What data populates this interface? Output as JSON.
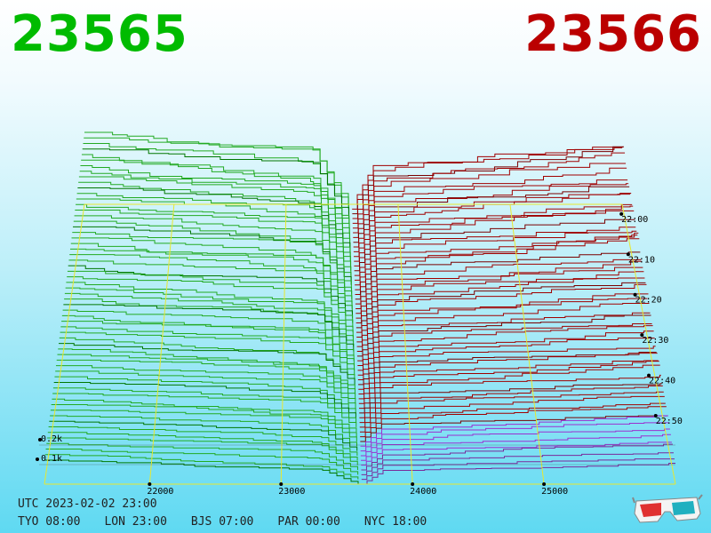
{
  "bid": "23565",
  "ask": "23566",
  "colors": {
    "bid": "#00bb00",
    "ask": "#bb0000",
    "bid_lines": "#22aa22",
    "ask_lines": "#a00000",
    "recent_ask": "#9b30d0",
    "grid": "#e8e830",
    "axis": "#000000"
  },
  "time_info": {
    "utc": "UTC 2023-02-02 23:00",
    "zones": [
      "TYO 08:00",
      "LON 23:00",
      "BJS 07:00",
      "PAR 00:00",
      "NYC 18:00"
    ]
  },
  "chart_data": {
    "type": "area",
    "description_type": "3d order book depth over time",
    "price_axis": {
      "ticks": [
        "22000",
        "23000",
        "24000",
        "25000"
      ],
      "range": [
        21200,
        26000
      ]
    },
    "volume_axis": {
      "ticks": [
        "0.1k",
        "0.2k"
      ]
    },
    "time_axis": {
      "ticks": [
        "22:00",
        "22:10",
        "22:20",
        "22:30",
        "22:40",
        "22:50"
      ]
    },
    "series": [
      {
        "name": "bids",
        "side": "bid",
        "last_price": 23565
      },
      {
        "name": "asks",
        "side": "ask",
        "last_price": 23566
      }
    ]
  },
  "icons": {
    "glasses": "3d-glasses-icon"
  }
}
